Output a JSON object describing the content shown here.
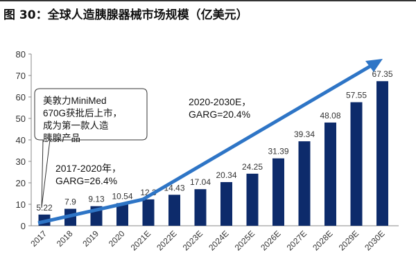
{
  "figure_title": "图 30：全球人造胰腺器械市场规模（亿美元）",
  "chart_data": {
    "type": "bar",
    "title": "",
    "xlabel": "",
    "ylabel": "",
    "ylim": [
      0,
      80
    ],
    "yticks": [
      0,
      10,
      20,
      30,
      40,
      50,
      60,
      70,
      80
    ],
    "grid": false,
    "categories": [
      "2017",
      "2018",
      "2019",
      "2020",
      "2021E",
      "2022E",
      "2023E",
      "2024E",
      "2025E",
      "2026E",
      "2027E",
      "2028E",
      "2029E",
      "2030E"
    ],
    "values": [
      5.22,
      7.9,
      9.13,
      10.54,
      12.3,
      14.43,
      17.04,
      20.34,
      24.25,
      31.39,
      39.34,
      48.08,
      57.55,
      67.35
    ],
    "value_labels": [
      "5.22",
      "7.9",
      "9.13",
      "10.54",
      "12.3",
      "14.43",
      "17.04",
      "20.34",
      "24.25",
      "31.39",
      "39.34",
      "48.08",
      "57.55",
      "67.35"
    ],
    "bar_color": "#0d2b6b",
    "arrow_color": "#2e75c6",
    "annotations": {
      "callout": [
        "美敦力MiniMed",
        "670G获批后上市，",
        "成为第一款人造",
        "胰腺产品"
      ],
      "cagr_2017_2020": [
        "2017-2020年，",
        "GARG=26.4%"
      ],
      "cagr_2020_2030": [
        "2020-2030E，",
        "GARG=20.4%"
      ]
    }
  }
}
